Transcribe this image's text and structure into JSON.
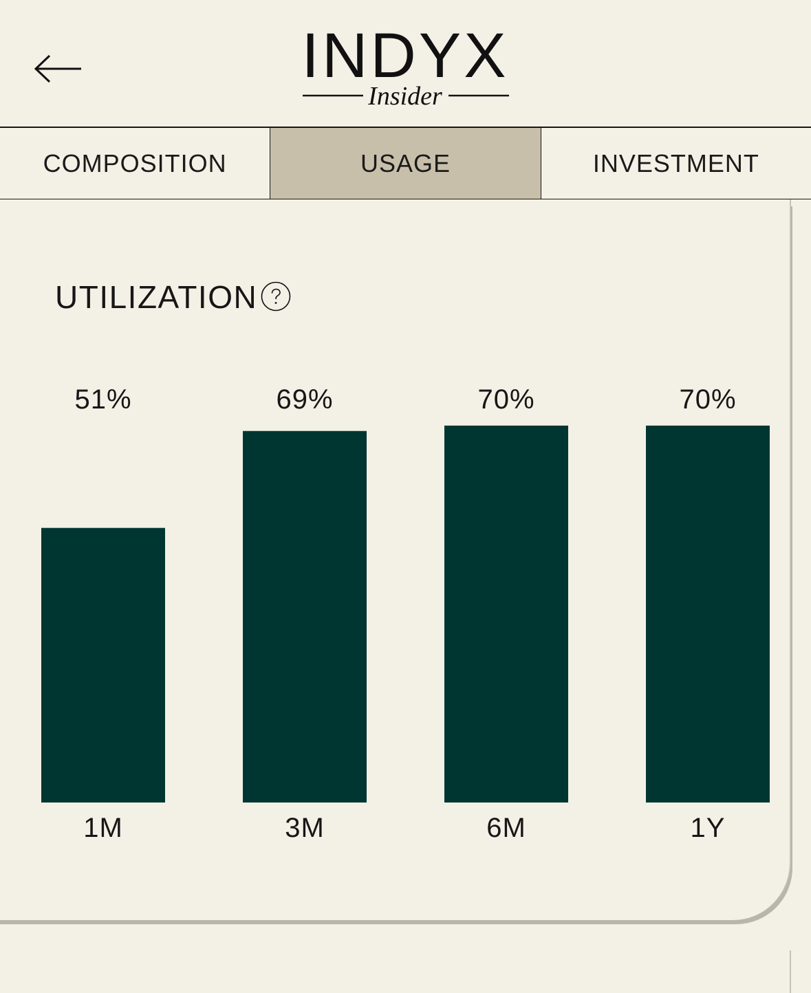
{
  "header": {
    "logo_main": "INDYX",
    "logo_sub": "Insider",
    "back_icon": "arrow-left-icon"
  },
  "tabs": [
    {
      "label": "COMPOSITION",
      "active": false
    },
    {
      "label": "USAGE",
      "active": true
    },
    {
      "label": "INVESTMENT",
      "active": false
    }
  ],
  "card": {
    "title": "UTILIZATION",
    "help_icon": "question-circle-icon"
  },
  "colors": {
    "background": "#f3f0e6",
    "active_tab": "#c8bfab",
    "bar": "#003631",
    "text": "#161616"
  },
  "chart_data": {
    "type": "bar",
    "categories": [
      "1M",
      "3M",
      "6M",
      "1Y"
    ],
    "values": [
      51,
      69,
      70,
      70
    ],
    "value_labels": [
      "51%",
      "69%",
      "70%",
      "70%"
    ],
    "title": "UTILIZATION",
    "xlabel": "",
    "ylabel": "",
    "grid": false,
    "legend": false
  }
}
